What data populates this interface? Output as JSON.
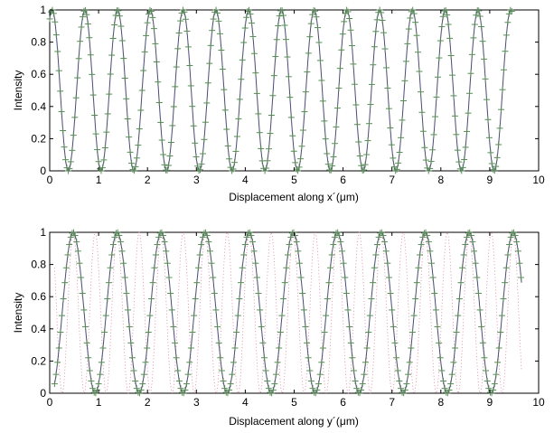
{
  "chart_data": [
    {
      "type": "line",
      "xlabel": "Displacement along x´(μm)",
      "ylabel": "Intensity",
      "xlim": [
        0,
        10
      ],
      "ylim": [
        0,
        1
      ],
      "xticks": [
        "0",
        "1",
        "2",
        "3",
        "4",
        "5",
        "6",
        "7",
        "8",
        "9",
        "10"
      ],
      "yticks": [
        "0",
        "0.2",
        "0.4",
        "0.6",
        "0.8",
        "1"
      ],
      "grid": false,
      "x_range_data": [
        0,
        9.45
      ],
      "peaks_x": [
        0.05,
        0.72,
        1.39,
        2.06,
        2.73,
        3.4,
        4.07,
        4.74,
        5.41,
        6.08,
        6.75,
        7.42,
        8.09,
        8.76,
        9.43
      ],
      "troughs_x": [
        0.38,
        1.05,
        1.72,
        2.39,
        3.06,
        3.73,
        4.4,
        5.07,
        5.74,
        6.41,
        7.08,
        7.75,
        8.42,
        9.09
      ],
      "series": [
        {
          "style": "line",
          "color": "#4a4a78",
          "values": "cos^2 fringe, period 0.67"
        },
        {
          "style": "plus-markers",
          "color": "#5a8a5a",
          "values": "measured points on fringe"
        }
      ]
    },
    {
      "type": "line",
      "xlabel": "Displacement along y´(μm)",
      "ylabel": "Intensity",
      "xlim": [
        0,
        10
      ],
      "ylim": [
        0,
        1
      ],
      "xticks": [
        "0",
        "1",
        "2",
        "3",
        "4",
        "5",
        "6",
        "7",
        "8",
        "9",
        "10"
      ],
      "yticks": [
        "0",
        "0.2",
        "0.4",
        "0.6",
        "0.8",
        "1"
      ],
      "grid": false,
      "x_range_data": [
        0.1,
        9.65
      ],
      "peaks_x": [
        0.48,
        1.38,
        2.28,
        3.18,
        4.08,
        4.98,
        5.88,
        6.78,
        7.68,
        8.58,
        9.48
      ],
      "troughs_x": [
        0.93,
        1.83,
        2.73,
        3.63,
        4.53,
        5.43,
        6.33,
        7.23,
        8.13,
        9.03
      ],
      "series": [
        {
          "style": "line",
          "color": "#4a4a78",
          "values": "cos^2 fringe, period 0.90"
        },
        {
          "style": "plus-markers",
          "color": "#5a8a5a",
          "values": "measured points on fringe"
        },
        {
          "style": "dotted",
          "color": "#e07a9a",
          "values": "reference fringe, period 0.45"
        }
      ]
    }
  ]
}
